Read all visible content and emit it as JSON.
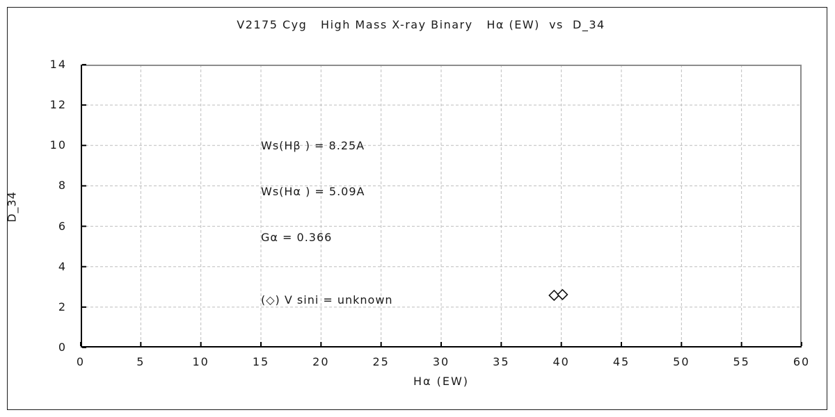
{
  "colors": {
    "background": "#ffffff",
    "frame_border": "#1a1a1a",
    "axis": "#000000",
    "plot_border_shadow": "#8c8c8c",
    "grid": "#bdbdbd",
    "marker_stroke": "#111111",
    "marker_fill": "#ffffff",
    "text": "#1a1a1a"
  },
  "chart_data": {
    "type": "scatter",
    "title": "V2175 Cyg   High Mass X-ray Binary   Hα (EW)  vs  D_34",
    "xlabel": "Hα (EW)",
    "ylabel": "D_34",
    "xlim": [
      0,
      60
    ],
    "ylim": [
      0,
      14
    ],
    "xticks": [
      0,
      5,
      10,
      15,
      20,
      25,
      30,
      35,
      40,
      45,
      50,
      55,
      60
    ],
    "yticks": [
      0,
      2,
      4,
      6,
      8,
      10,
      12,
      14
    ],
    "grid": {
      "style": "dashed",
      "on": true
    },
    "legend_position": "inside-plot-upper-left",
    "series": [
      {
        "name": "V sini = unknown",
        "marker": "open-diamond",
        "points": [
          {
            "x": 39.4,
            "y": 2.58
          },
          {
            "x": 40.1,
            "y": 2.62
          }
        ]
      }
    ],
    "annotations": {
      "ws_hbeta": "Ws(Hβ ) = 8.25A",
      "ws_halpha": "Ws(Hα ) = 5.09A",
      "g_alpha": "Gα = 0.366",
      "legend": "(◇) V sini = unknown"
    }
  }
}
